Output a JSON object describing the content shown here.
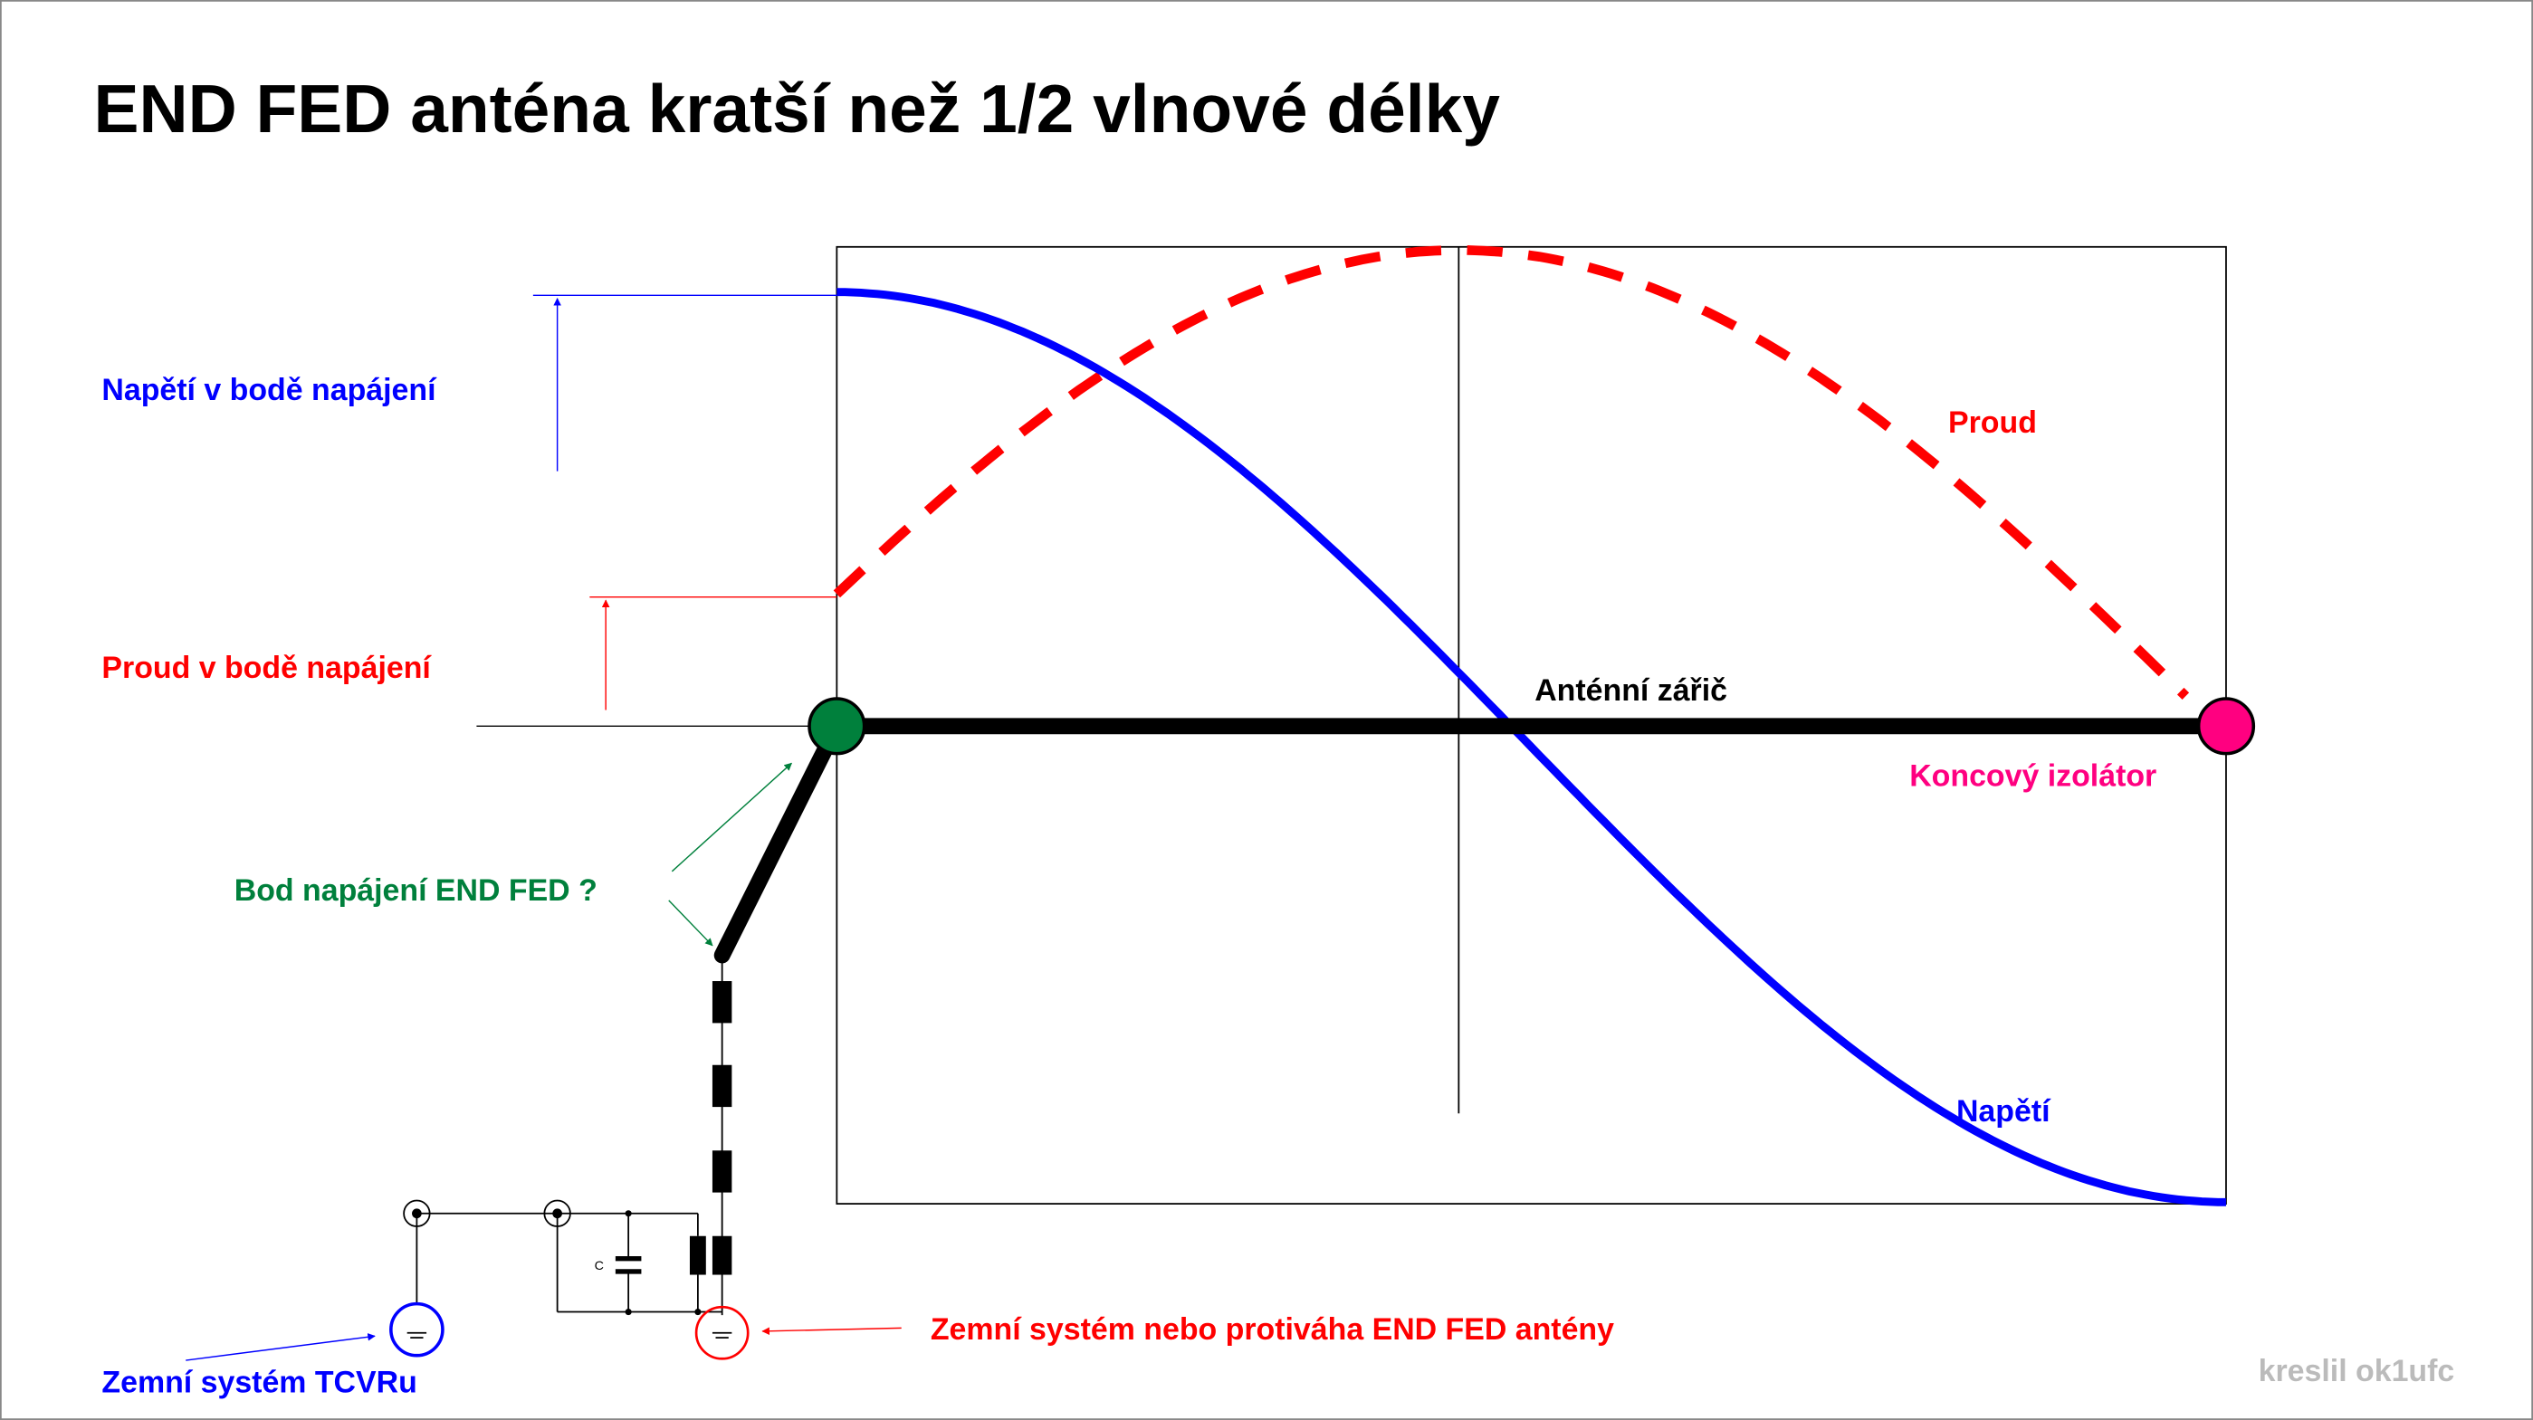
{
  "title": "END FED anténa kratší než 1/2 vlnové délky",
  "labels": {
    "feed_voltage": "Napětí v bodě napájení",
    "feed_current": "Proud v bodě napájení",
    "current": "Proud",
    "radiator": "Anténní zářič",
    "end_insulator": "Koncový izolátor",
    "feed_point": "Bod napájení END FED ?",
    "voltage": "Napětí",
    "antenna_ground": "Zemní systém nebo protiváha END FED antény",
    "tcvr_ground": "Zemní systém TCVRu",
    "capacitor": "C",
    "author": "kreslil ok1ufc"
  }
}
